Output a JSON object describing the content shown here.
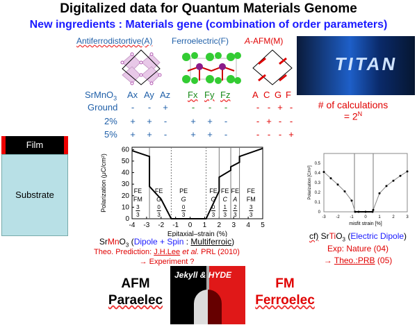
{
  "title": "Digitalized data for Quantum Materials Genome",
  "subtitle": "New ingredients : Materials gene (combination of order parameters)",
  "headers": {
    "a": "Antiferrodistortive(A)",
    "f": "Ferroelectric(F)",
    "m_italic": "A",
    "m": "-AFM(M)"
  },
  "table": {
    "material": "SrMnO",
    "material_sub": "3",
    "a_cols": [
      "Ax",
      "Ay",
      "Az"
    ],
    "f_cols": [
      "Fx",
      "Fy",
      "Fz"
    ],
    "m_cols": [
      "A",
      "C",
      "G",
      "F"
    ],
    "rows": [
      {
        "label": "Ground",
        "a": [
          "-",
          "-",
          "+"
        ],
        "f": [
          "-",
          "-",
          "-"
        ],
        "m": [
          "-",
          "-",
          "+",
          "-"
        ]
      },
      {
        "label": "2%",
        "a": [
          "+",
          "+",
          "-"
        ],
        "f": [
          "+",
          "+",
          "-"
        ],
        "m": [
          "-",
          "+",
          "-",
          "-"
        ]
      },
      {
        "label": "5%",
        "a": [
          "+",
          "+",
          "-"
        ],
        "f": [
          "+",
          "+",
          "-"
        ],
        "m": [
          "-",
          "-",
          "-",
          "+"
        ]
      }
    ]
  },
  "calc": {
    "line1": "# of calculations",
    "line2": "= 2",
    "sup": "N"
  },
  "film": {
    "film": "Film",
    "substrate": "Substrate"
  },
  "chart_data": [
    {
      "type": "line",
      "xlabel": "Epitaxial–strain (%)",
      "ylabel": "Polarization (μC/cm²)",
      "xlim": [
        -4,
        5
      ],
      "ylim": [
        0,
        62
      ],
      "xticks": [
        -4,
        -3,
        -2,
        -1,
        0,
        1,
        2,
        3,
        4,
        5
      ],
      "yticks": [
        0,
        10,
        20,
        30,
        40,
        50,
        60
      ],
      "x": [
        -4,
        -2.8,
        -2.8,
        -2,
        -1.3,
        1.1,
        2,
        2,
        2.8,
        2.8,
        3.4,
        3.4,
        5
      ],
      "y": [
        59,
        54,
        28,
        17,
        0,
        0,
        24,
        36,
        42,
        45,
        49,
        54,
        61
      ],
      "boundaries": [
        {
          "x": -2.8,
          "style": "solid"
        },
        {
          "x": -1.3,
          "style": "dotted"
        },
        {
          "x": 1.1,
          "style": "dotted"
        },
        {
          "x": 2,
          "style": "solid"
        },
        {
          "x": 2.8,
          "style": "solid"
        },
        {
          "x": 3.4,
          "style": "solid"
        }
      ],
      "regions": [
        {
          "x": -3.6,
          "l1": "FE",
          "l2": "FM",
          "n": "3",
          "d": "3"
        },
        {
          "x": -2.15,
          "l1": "FE",
          "l2": "G",
          "n": "0",
          "d": "3"
        },
        {
          "x": -0.45,
          "l1": "PE",
          "l2": "G",
          "n": "0",
          "d": "3"
        },
        {
          "x": 1.6,
          "l1": "FE",
          "l2": "G",
          "n": "0",
          "d": "3"
        },
        {
          "x": 2.4,
          "l1": "FE",
          "l2": "C",
          "n": "1",
          "d": "3"
        },
        {
          "x": 3.1,
          "l1": "FE",
          "l2": "A",
          "n": "2",
          "d": "3"
        },
        {
          "x": 4.2,
          "l1": "FE",
          "l2": "FM",
          "n": "3",
          "d": "3"
        }
      ]
    },
    {
      "type": "line",
      "xlabel": "misfit strain [%]",
      "ylabel": "Polarization [C/m²]",
      "xlim": [
        -3,
        3
      ],
      "ylim": [
        0,
        0.6
      ],
      "xticks": [
        -3,
        -2,
        -1,
        0,
        1,
        2,
        3
      ],
      "yticks": [
        0,
        0.1,
        0.2,
        0.3,
        0.4,
        0.5
      ],
      "x": [
        -3,
        -2.5,
        -2,
        -1.5,
        -1,
        -0.75,
        -0.5,
        0,
        0.5,
        0.55,
        1,
        1.5,
        2,
        2.5,
        3
      ],
      "y": [
        0.41,
        0.345,
        0.28,
        0.21,
        0.115,
        0,
        0,
        0,
        0,
        0.02,
        0.19,
        0.265,
        0.32,
        0.37,
        0.415
      ],
      "boundaries": [
        -0.8,
        0.55
      ]
    }
  ],
  "caption1": {
    "a": "Sr",
    "mn": "Mn",
    "b": "O",
    "sub": "3",
    "c": " (",
    "dip": "Dipole + Spin",
    "d": " : ",
    "multi": "Multiferroic",
    "e": ")"
  },
  "caption2": {
    "a": "Theo. Prediction: ",
    "ref": "J.H.Lee",
    "et": " et al.",
    "b": " PRL (2010)"
  },
  "caption3": "→  Experiment ?",
  "cf": {
    "a": "cf)",
    "b": " Sr",
    "ti": "Ti",
    "c": "O",
    "sub": "3",
    "d": " (",
    "e": "Electric Dipole",
    "f": ")",
    "exp": "Exp: Nature (04)",
    "arrow": "→ ",
    "theo": "Theo.:PRB",
    "theo_b": " (05)"
  },
  "left": {
    "l1": "AFM",
    "l2": "Paraelec"
  },
  "right": {
    "l1": "FM",
    "l2": "Ferroelec"
  },
  "poster": {
    "text": "Jekyll & HYDE"
  },
  "supercomputer": {
    "text": "TITAN"
  }
}
